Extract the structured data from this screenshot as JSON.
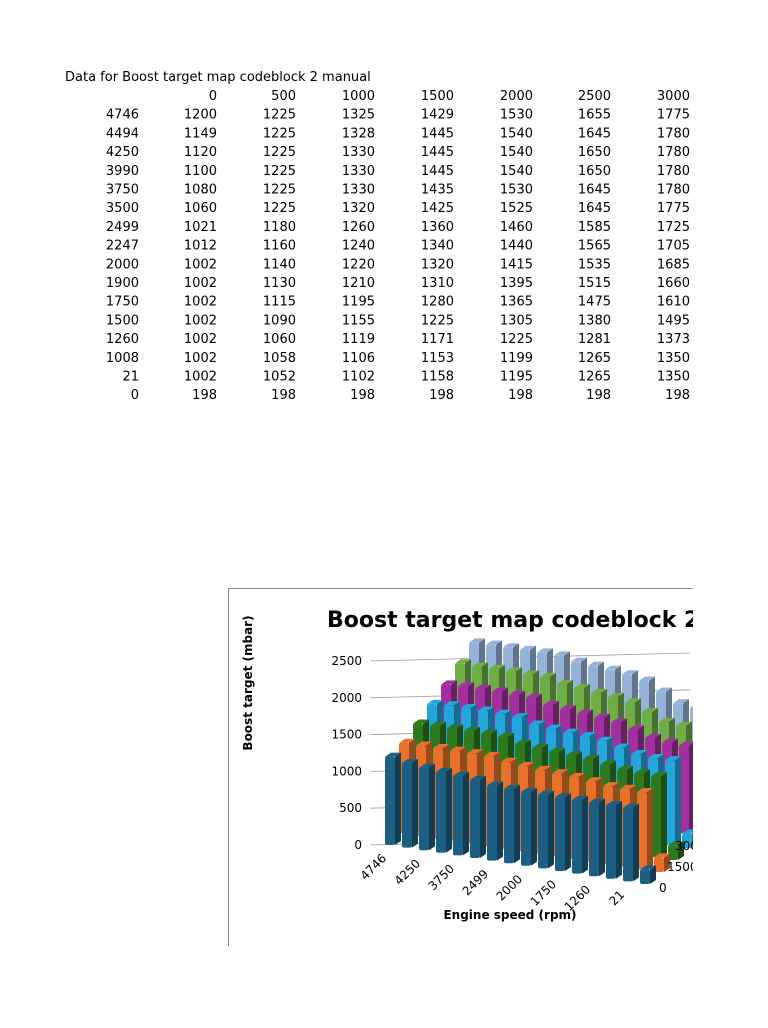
{
  "table": {
    "title": "Data for Boost target map codeblock 2 manual",
    "header": [
      0,
      500,
      1000,
      1500,
      2000,
      2500,
      3000
    ],
    "rows": [
      {
        "label": 4746,
        "values": [
          1200,
          1225,
          1325,
          1429,
          1530,
          1655,
          1775
        ]
      },
      {
        "label": 4494,
        "values": [
          1149,
          1225,
          1328,
          1445,
          1540,
          1645,
          1780
        ]
      },
      {
        "label": 4250,
        "values": [
          1120,
          1225,
          1330,
          1445,
          1540,
          1650,
          1780
        ]
      },
      {
        "label": 3990,
        "values": [
          1100,
          1225,
          1330,
          1445,
          1540,
          1650,
          1780
        ]
      },
      {
        "label": 3750,
        "values": [
          1080,
          1225,
          1330,
          1435,
          1530,
          1645,
          1780
        ]
      },
      {
        "label": 3500,
        "values": [
          1060,
          1225,
          1320,
          1425,
          1525,
          1645,
          1775
        ]
      },
      {
        "label": 2499,
        "values": [
          1021,
          1180,
          1260,
          1360,
          1460,
          1585,
          1725
        ]
      },
      {
        "label": 2247,
        "values": [
          1012,
          1160,
          1240,
          1340,
          1440,
          1565,
          1705
        ]
      },
      {
        "label": 2000,
        "values": [
          1002,
          1140,
          1220,
          1320,
          1415,
          1535,
          1685
        ]
      },
      {
        "label": 1900,
        "values": [
          1002,
          1130,
          1210,
          1310,
          1395,
          1515,
          1660
        ]
      },
      {
        "label": 1750,
        "values": [
          1002,
          1115,
          1195,
          1280,
          1365,
          1475,
          1610
        ]
      },
      {
        "label": 1500,
        "values": [
          1002,
          1090,
          1155,
          1225,
          1305,
          1380,
          1495
        ]
      },
      {
        "label": 1260,
        "values": [
          1002,
          1060,
          1119,
          1171,
          1225,
          1281,
          1373
        ]
      },
      {
        "label": 1008,
        "values": [
          1002,
          1058,
          1106,
          1153,
          1199,
          1265,
          1350
        ]
      },
      {
        "label": 21,
        "values": [
          1002,
          1052,
          1102,
          1158,
          1195,
          1265,
          1350
        ]
      },
      {
        "label": 0,
        "values": [
          198,
          198,
          198,
          198,
          198,
          198,
          198
        ]
      }
    ]
  },
  "chart": {
    "title": "Boost target map codeblock 2",
    "y_axis_title": "Boost target (mbar)",
    "x_axis_title": "Engine speed (rpm)",
    "ylim": [
      0,
      2500
    ],
    "yticks": [
      0,
      500,
      1000,
      1500,
      2000,
      2500
    ],
    "series_colors": [
      "#1c5f82",
      "#e8702a",
      "#2d7a1e",
      "#22a6dc",
      "#a12fa0",
      "#6fae45",
      "#95b3d7"
    ]
  }
}
